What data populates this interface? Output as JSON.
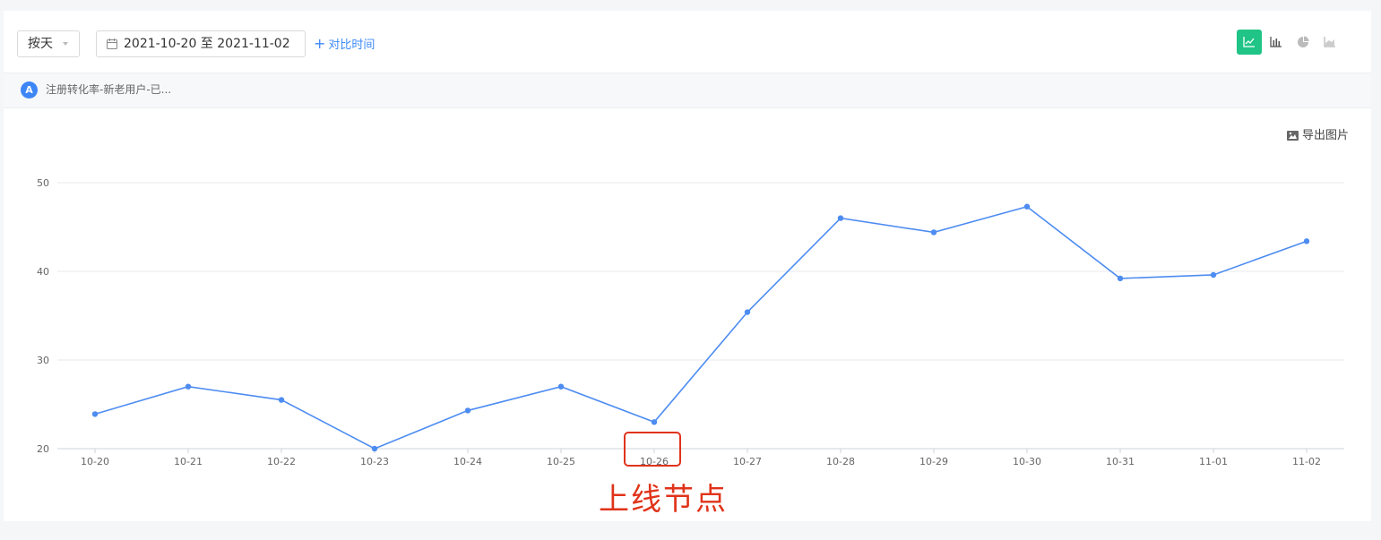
{
  "toolbar": {
    "granularity": "按天",
    "date_range": "2021-10-20 至 2021-11-02",
    "compare_label": "对比时间"
  },
  "chart_types": [
    "line-chart-icon",
    "bar-chart-icon",
    "pie-chart-icon",
    "area-chart-icon"
  ],
  "active_chart_type": "line-chart-icon",
  "legend": {
    "badge": "A",
    "label": "注册转化率-新老用户-已..."
  },
  "export_label": "导出图片",
  "annotation": {
    "text": "上线节点",
    "target_category": "10-26"
  },
  "colors": {
    "accent": "#1fc486",
    "series": "#4d8cf1",
    "annotation": "#e0331a",
    "link": "#3d8af7"
  },
  "chart_data": {
    "type": "line",
    "categories": [
      "10-20",
      "10-21",
      "10-22",
      "10-23",
      "10-24",
      "10-25",
      "10-26",
      "10-27",
      "10-28",
      "10-29",
      "10-30",
      "10-31",
      "11-01",
      "11-02"
    ],
    "series": [
      {
        "values": [
          23.9,
          27.0,
          25.5,
          20.0,
          24.3,
          27.0,
          23.0,
          35.4,
          46.0,
          44.4,
          47.3,
          39.2,
          39.6,
          43.4
        ]
      }
    ],
    "yticks": [
      20,
      30,
      40,
      50
    ],
    "ylim": [
      20,
      50
    ],
    "grid": true,
    "title": "",
    "xlabel": "",
    "ylabel": ""
  }
}
